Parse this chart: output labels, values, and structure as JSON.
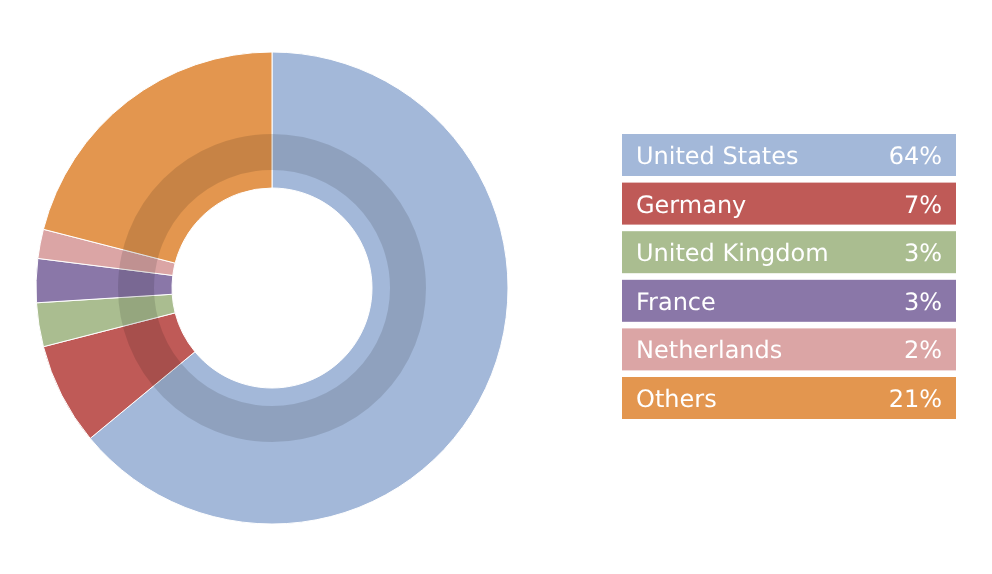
{
  "chart_data": {
    "type": "donut",
    "categories": [
      "United States",
      "Germany",
      "United Kingdom",
      "France",
      "Netherlands",
      "Others"
    ],
    "values": [
      64,
      7,
      3,
      3,
      2,
      21
    ],
    "colors": [
      "#a3b8d9",
      "#bf5a57",
      "#aabd90",
      "#8a77a8",
      "#dba5a5",
      "#e3964f"
    ],
    "value_labels": [
      "64%",
      "7%",
      "3%",
      "3%",
      "2%",
      "21%"
    ],
    "legend": "right"
  }
}
